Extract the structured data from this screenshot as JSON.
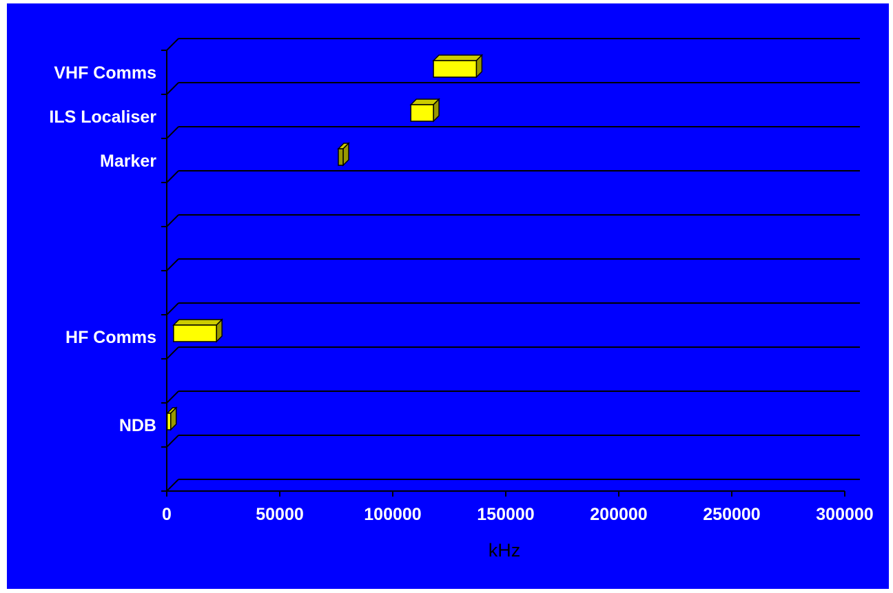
{
  "colors": {
    "background": "#0000ff",
    "bar_front": "#ffff00",
    "bar_top": "#cccc00",
    "bar_side": "#999900",
    "thin_bar_front": "#999900",
    "gridline": "#000000",
    "label_text": "#ffffff",
    "axis_title_text": "#000000"
  },
  "chart_data": {
    "type": "bar",
    "orientation": "horizontal-floating-3d",
    "xlabel": "kHz",
    "ylabel": "",
    "title": "",
    "xlim": [
      0,
      300000
    ],
    "xticks": [
      0,
      50000,
      100000,
      150000,
      200000,
      250000,
      300000
    ],
    "xtick_labels": [
      "0",
      "50000",
      "100000",
      "150000",
      "200000",
      "250000",
      "300000"
    ],
    "row_count": 10,
    "categories": [
      "VHF Comms",
      "ILS Localiser",
      "Marker",
      "",
      "",
      "",
      "HF Comms",
      "",
      "NDB",
      ""
    ],
    "ranges": [
      {
        "label": "VHF Comms",
        "start": 118000,
        "end": 137000
      },
      {
        "label": "ILS Localiser",
        "start": 108000,
        "end": 118000
      },
      {
        "label": "Marker",
        "start": 75000,
        "end": 75000
      },
      null,
      null,
      null,
      {
        "label": "HF Comms",
        "start": 3000,
        "end": 22000
      },
      null,
      {
        "label": "NDB",
        "start": 190,
        "end": 1750
      },
      null
    ],
    "grid": true
  }
}
